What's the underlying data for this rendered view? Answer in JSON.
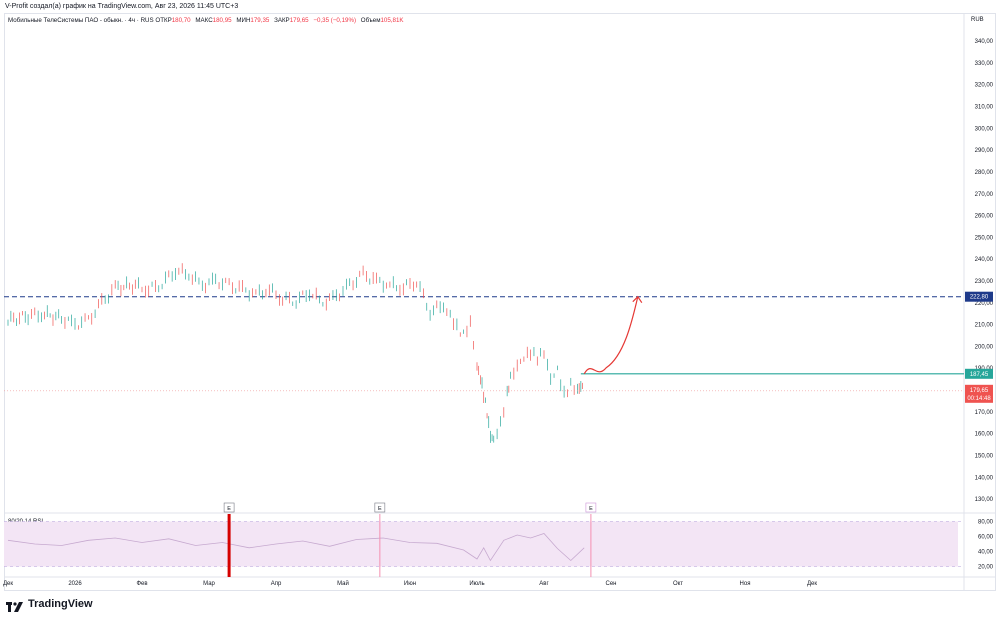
{
  "caption": "V-Profit создал(а) график на TradingView.com, Авг 23, 2026 11:45 UTC+3",
  "legend": {
    "symbol": "Мобильные ТелеСистемы ПАО - обыкн. · 4ч · RUS",
    "open_label": "ОТКР",
    "open": "180,70",
    "high_label": "МАКС",
    "high": "180,95",
    "low_label": "МИН",
    "low": "179,35",
    "close_label": "ЗАКР",
    "close": "179,65",
    "change": "−0,35 (−0,19%)",
    "volume_label": "Объем",
    "volume": "105,81K"
  },
  "currency": "RUB",
  "rsi_label": "80/20 14 RSI",
  "brand": "TradingView",
  "colors": {
    "up": "#26a69a",
    "down": "#ef5350",
    "dash": "#1e3a8a",
    "level": "#26a69a",
    "price_tag": "#ef5350",
    "arrow": "#e53935",
    "rsi_band": "#f3e5f5",
    "rsi_line": "#c6a9cf"
  },
  "chart_data": {
    "type": "line",
    "title": "",
    "y_axis": {
      "unit": "RUB",
      "ylim": [
        125,
        346
      ],
      "ticks": [
        340,
        330,
        320,
        310,
        300,
        290,
        280,
        270,
        260,
        250,
        240,
        230,
        220,
        210,
        200,
        190,
        180,
        170,
        160,
        150,
        140,
        130
      ],
      "tick_labels": [
        "340,00",
        "330,00",
        "320,00",
        "310,00",
        "300,00",
        "290,00",
        "280,00",
        "270,00",
        "260,00",
        "250,00",
        "240,00",
        "230,00",
        "220,00",
        "210,00",
        "200,00",
        "190,00",
        "180,00",
        "170,00",
        "160,00",
        "150,00",
        "140,00",
        "130,00"
      ]
    },
    "x_axis": {
      "categories": [
        "Дек",
        "2026",
        "Фев",
        "Мар",
        "Апр",
        "Май",
        "Июн",
        "Июль",
        "Авг",
        "Сен",
        "Окт",
        "Ноя",
        "Дек"
      ],
      "month_positions": [
        0,
        1,
        2,
        3,
        4,
        5,
        6,
        7,
        8,
        9,
        10,
        11,
        12
      ]
    },
    "series": [
      {
        "name": "",
        "x": [
          0.0,
          0.3,
          0.5,
          0.8,
          1.0,
          1.2,
          1.4,
          1.6,
          1.9,
          2.1,
          2.3,
          2.5,
          2.7,
          2.9,
          3.1,
          3.3,
          3.5,
          3.7,
          3.9,
          4.1,
          4.3,
          4.5,
          4.7,
          4.9,
          5.1,
          5.3,
          5.5,
          5.7,
          5.9,
          6.1,
          6.3,
          6.5,
          6.6,
          6.7,
          6.8,
          6.9,
          7.0,
          7.05,
          7.1,
          7.15,
          7.2,
          7.25,
          7.35,
          7.45,
          7.5,
          7.6,
          7.7,
          7.8,
          7.9,
          8.0,
          8.1,
          8.2,
          8.3,
          8.4,
          8.5,
          8.55,
          8.6
        ],
        "values": [
          212,
          214,
          215,
          213,
          210,
          212,
          220,
          227,
          228,
          226,
          229,
          235,
          233,
          228,
          230,
          228,
          226,
          224,
          226,
          222,
          221,
          225,
          220,
          223,
          228,
          233,
          230,
          228,
          227,
          230,
          216,
          219,
          215,
          209,
          205,
          210,
          190,
          185,
          178,
          170,
          160,
          158,
          165,
          178,
          185,
          190,
          194,
          197,
          195,
          198,
          186,
          190,
          178,
          182,
          179,
          181,
          179.65
        ]
      }
    ],
    "levels": [
      {
        "value": 222.8,
        "label": "222,80",
        "style": "dashed"
      },
      {
        "value": 187.45,
        "label": "187,45",
        "style": "solid",
        "from_x": 8.55
      }
    ],
    "current_price": {
      "value": 179.65,
      "label": "179,65",
      "countdown": "00:14:48"
    },
    "projection": {
      "from": [
        8.6,
        187.45
      ],
      "to": [
        9.4,
        222.8
      ]
    },
    "events": [
      {
        "x": 3.3,
        "label": "E"
      },
      {
        "x": 5.55,
        "label": "E"
      },
      {
        "x": 8.7,
        "label": "E"
      }
    ],
    "rsi": {
      "ylim": [
        10,
        90
      ],
      "ticks": [
        80,
        60,
        40,
        20
      ],
      "tick_labels": [
        "80,00",
        "60,00",
        "40,00",
        "20,00"
      ],
      "band": [
        20,
        80
      ],
      "x": [
        0.0,
        0.4,
        0.8,
        1.2,
        1.6,
        2.0,
        2.4,
        2.8,
        3.2,
        3.6,
        4.0,
        4.4,
        4.8,
        5.2,
        5.6,
        6.0,
        6.4,
        6.8,
        7.0,
        7.1,
        7.2,
        7.4,
        7.6,
        7.8,
        8.0,
        8.2,
        8.4,
        8.6
      ],
      "values": [
        55,
        50,
        48,
        55,
        58,
        52,
        57,
        48,
        52,
        45,
        50,
        54,
        47,
        56,
        58,
        52,
        51,
        42,
        30,
        45,
        28,
        55,
        62,
        58,
        64,
        44,
        28,
        45
      ]
    },
    "grid": false,
    "legend_position": "top-left"
  }
}
